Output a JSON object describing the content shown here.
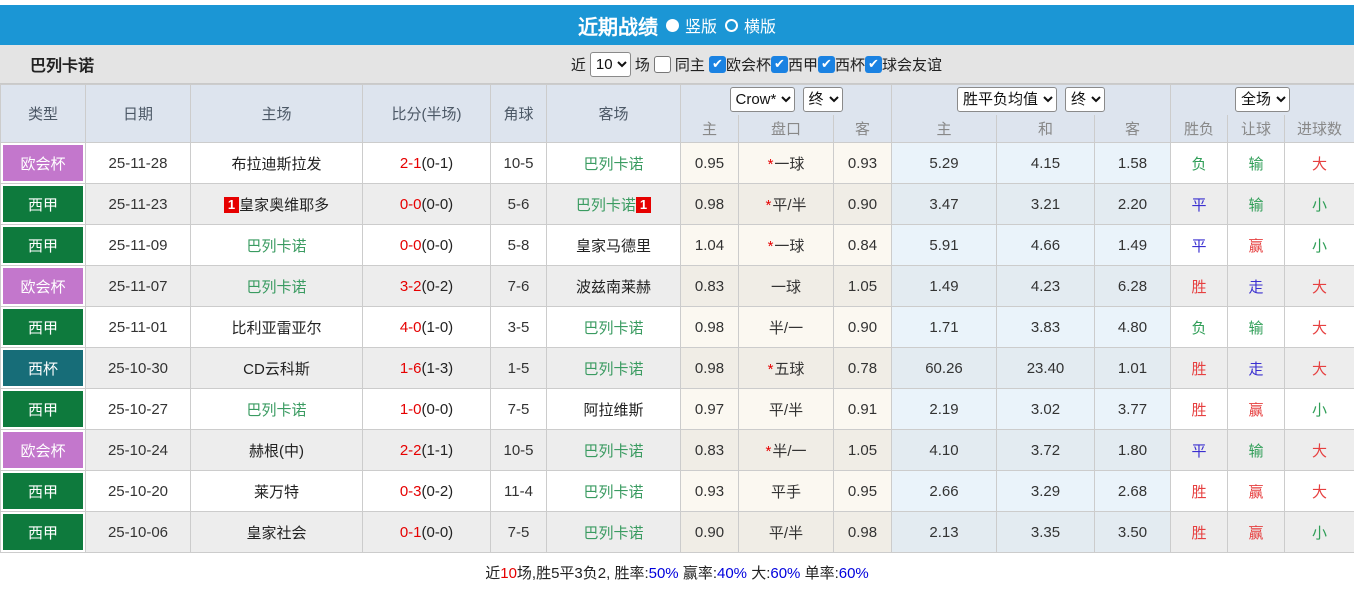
{
  "titlebar": {
    "title": "近期战绩",
    "radio_vertical": "竖版",
    "radio_horizontal": "横版"
  },
  "filterbar": {
    "team": "巴列卡诺",
    "recent_label": "近",
    "recent_value": "10",
    "matches_label": "场",
    "same_home_label": "同主",
    "competitions": [
      "欧会杯",
      "西甲",
      "西杯",
      "球会友谊"
    ]
  },
  "table": {
    "controls": {
      "company": "Crow*",
      "company_time": "终",
      "mean": "胜平负均值",
      "mean_time": "终",
      "scope": "全场"
    },
    "headers": {
      "type": "类型",
      "date": "日期",
      "home": "主场",
      "score": "比分(半场)",
      "corner": "角球",
      "away": "客场",
      "sub_home": "主",
      "sub_handicap": "盘口",
      "sub_away": "客",
      "sub_mean_home": "主",
      "sub_mean_draw": "和",
      "sub_mean_away": "客",
      "sub_result": "胜负",
      "sub_let": "让球",
      "sub_goals": "进球数"
    },
    "type_colors": {
      "欧会杯": "#c377cc",
      "西甲": "#0e7a3d",
      "西杯": "#176d78"
    },
    "rows": [
      {
        "type": "欧会杯",
        "date": "25-11-28",
        "home": "布拉迪斯拉发",
        "home_green": false,
        "home_badge": false,
        "score": "2-1",
        "half": "(0-1)",
        "corner": "10-5",
        "away": "巴列卡诺",
        "away_green": true,
        "away_badge": false,
        "crow_home": "0.95",
        "star": true,
        "handicap": "一球",
        "crow_away": "0.93",
        "mean_home": "5.29",
        "mean_draw": "4.15",
        "mean_away": "1.58",
        "result": "负",
        "result_c": "green",
        "let": "输",
        "let_c": "green",
        "goal": "大",
        "goal_c": "red"
      },
      {
        "type": "西甲",
        "date": "25-11-23",
        "home": "皇家奥维耶多",
        "home_green": false,
        "home_badge": true,
        "score": "0-0",
        "half": "(0-0)",
        "corner": "5-6",
        "away": "巴列卡诺",
        "away_green": true,
        "away_badge": true,
        "crow_home": "0.98",
        "star": true,
        "handicap": "平/半",
        "crow_away": "0.90",
        "mean_home": "3.47",
        "mean_draw": "3.21",
        "mean_away": "2.20",
        "result": "平",
        "result_c": "blue",
        "let": "输",
        "let_c": "green",
        "goal": "小",
        "goal_c": "green"
      },
      {
        "type": "西甲",
        "date": "25-11-09",
        "home": "巴列卡诺",
        "home_green": true,
        "home_badge": false,
        "score": "0-0",
        "half": "(0-0)",
        "corner": "5-8",
        "away": "皇家马德里",
        "away_green": false,
        "away_badge": false,
        "crow_home": "1.04",
        "star": true,
        "handicap": "一球",
        "crow_away": "0.84",
        "mean_home": "5.91",
        "mean_draw": "4.66",
        "mean_away": "1.49",
        "result": "平",
        "result_c": "blue",
        "let": "赢",
        "let_c": "red",
        "goal": "小",
        "goal_c": "green"
      },
      {
        "type": "欧会杯",
        "date": "25-11-07",
        "home": "巴列卡诺",
        "home_green": true,
        "home_badge": false,
        "score": "3-2",
        "half": "(0-2)",
        "corner": "7-6",
        "away": "波兹南莱赫",
        "away_green": false,
        "away_badge": false,
        "crow_home": "0.83",
        "star": false,
        "handicap": "一球",
        "crow_away": "1.05",
        "mean_home": "1.49",
        "mean_draw": "4.23",
        "mean_away": "6.28",
        "result": "胜",
        "result_c": "red",
        "let": "走",
        "let_c": "blue",
        "goal": "大",
        "goal_c": "red"
      },
      {
        "type": "西甲",
        "date": "25-11-01",
        "home": "比利亚雷亚尔",
        "home_green": false,
        "home_badge": false,
        "score": "4-0",
        "half": "(1-0)",
        "corner": "3-5",
        "away": "巴列卡诺",
        "away_green": true,
        "away_badge": false,
        "crow_home": "0.98",
        "star": false,
        "handicap": "半/一",
        "crow_away": "0.90",
        "mean_home": "1.71",
        "mean_draw": "3.83",
        "mean_away": "4.80",
        "result": "负",
        "result_c": "green",
        "let": "输",
        "let_c": "green",
        "goal": "大",
        "goal_c": "red"
      },
      {
        "type": "西杯",
        "date": "25-10-30",
        "home": "CD云科斯",
        "home_green": false,
        "home_badge": false,
        "score": "1-6",
        "half": "(1-3)",
        "corner": "1-5",
        "away": "巴列卡诺",
        "away_green": true,
        "away_badge": false,
        "crow_home": "0.98",
        "star": true,
        "handicap": "五球",
        "crow_away": "0.78",
        "mean_home": "60.26",
        "mean_draw": "23.40",
        "mean_away": "1.01",
        "result": "胜",
        "result_c": "red",
        "let": "走",
        "let_c": "blue",
        "goal": "大",
        "goal_c": "red"
      },
      {
        "type": "西甲",
        "date": "25-10-27",
        "home": "巴列卡诺",
        "home_green": true,
        "home_badge": false,
        "score": "1-0",
        "half": "(0-0)",
        "corner": "7-5",
        "away": "阿拉维斯",
        "away_green": false,
        "away_badge": false,
        "crow_home": "0.97",
        "star": false,
        "handicap": "平/半",
        "crow_away": "0.91",
        "mean_home": "2.19",
        "mean_draw": "3.02",
        "mean_away": "3.77",
        "result": "胜",
        "result_c": "red",
        "let": "赢",
        "let_c": "red",
        "goal": "小",
        "goal_c": "green"
      },
      {
        "type": "欧会杯",
        "date": "25-10-24",
        "home": "赫根(中)",
        "home_green": false,
        "home_badge": false,
        "score": "2-2",
        "half": "(1-1)",
        "corner": "10-5",
        "away": "巴列卡诺",
        "away_green": true,
        "away_badge": false,
        "crow_home": "0.83",
        "star": true,
        "handicap": "半/一",
        "crow_away": "1.05",
        "mean_home": "4.10",
        "mean_draw": "3.72",
        "mean_away": "1.80",
        "result": "平",
        "result_c": "blue",
        "let": "输",
        "let_c": "green",
        "goal": "大",
        "goal_c": "red"
      },
      {
        "type": "西甲",
        "date": "25-10-20",
        "home": "莱万特",
        "home_green": false,
        "home_badge": false,
        "score": "0-3",
        "half": "(0-2)",
        "corner": "11-4",
        "away": "巴列卡诺",
        "away_green": true,
        "away_badge": false,
        "crow_home": "0.93",
        "star": false,
        "handicap": "平手",
        "crow_away": "0.95",
        "mean_home": "2.66",
        "mean_draw": "3.29",
        "mean_away": "2.68",
        "result": "胜",
        "result_c": "red",
        "let": "赢",
        "let_c": "red",
        "goal": "大",
        "goal_c": "red"
      },
      {
        "type": "西甲",
        "date": "25-10-06",
        "home": "皇家社会",
        "home_green": false,
        "home_badge": false,
        "score": "0-1",
        "half": "(0-0)",
        "corner": "7-5",
        "away": "巴列卡诺",
        "away_green": true,
        "away_badge": false,
        "crow_home": "0.90",
        "star": false,
        "handicap": "平/半",
        "crow_away": "0.98",
        "mean_home": "2.13",
        "mean_draw": "3.35",
        "mean_away": "3.50",
        "result": "胜",
        "result_c": "red",
        "let": "赢",
        "let_c": "red",
        "goal": "小",
        "goal_c": "green"
      }
    ]
  },
  "footer": {
    "segments": [
      {
        "text": "近",
        "color": "dark"
      },
      {
        "text": "10",
        "color": "red"
      },
      {
        "text": "场,胜5平3负2, 胜率:",
        "color": "dark"
      },
      {
        "text": "50%",
        "color": "blue"
      },
      {
        "text": " 赢率:",
        "color": "dark"
      },
      {
        "text": "40%",
        "color": "blue"
      },
      {
        "text": " 大:",
        "color": "dark"
      },
      {
        "text": "60%",
        "color": "blue"
      },
      {
        "text": " 单率:",
        "color": "dark"
      },
      {
        "text": "60%",
        "color": "blue"
      }
    ]
  }
}
